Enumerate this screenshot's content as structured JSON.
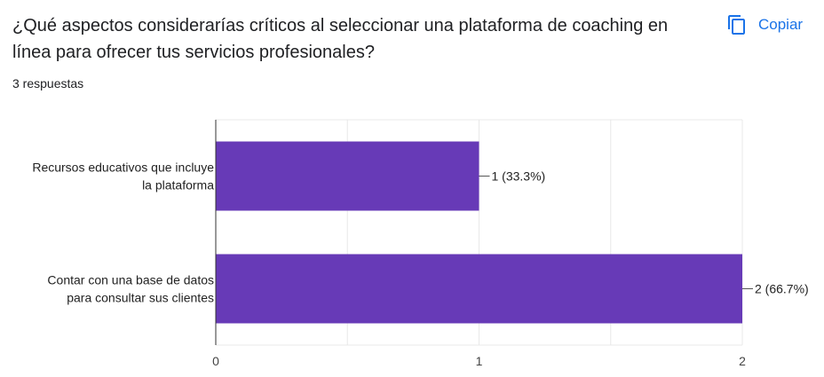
{
  "question": {
    "title": "¿Qué aspectos considerarías críticos al seleccionar una plataforma de coaching en línea para ofrecer tus servicios profesionales?",
    "response_count": "3 respuestas"
  },
  "toolbar": {
    "copy_label": "Copiar",
    "copy_icon": "copy-icon"
  },
  "colors": {
    "bar": "#673ab7",
    "accent": "#1a73e8",
    "grid": "#e8e8e8",
    "axis": "#333333"
  },
  "chart_data": {
    "type": "bar",
    "orientation": "horizontal",
    "categories": [
      [
        "Recursos educativos que incluye",
        "la plataforma"
      ],
      [
        "Contar con una base de datos",
        "para consultar sus clientes"
      ]
    ],
    "values": [
      1,
      2
    ],
    "value_labels": [
      "1 (33.3%)",
      "2 (66.7%)"
    ],
    "xlim": [
      0,
      2
    ],
    "x_ticks": [
      "0",
      "1",
      "2"
    ],
    "grid": true
  }
}
